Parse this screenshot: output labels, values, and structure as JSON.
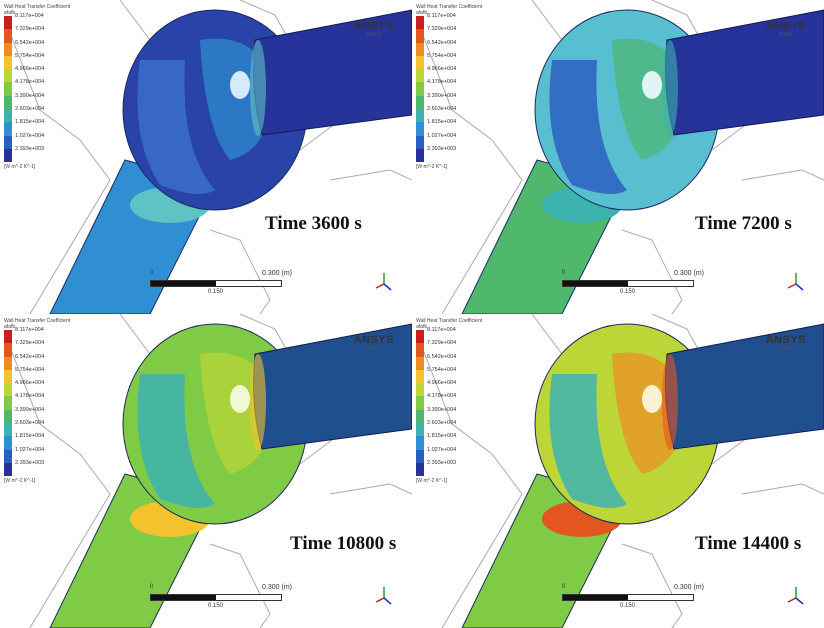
{
  "legend": {
    "title": "Wall Heat Transfer Coefficient\nafafb",
    "values": [
      "8.117e+004",
      "7.329e+004",
      "6.542e+004",
      "5.754e+004",
      "4.966e+004",
      "4.178e+004",
      "3.390e+004",
      "2.603e+004",
      "1.815e+004",
      "1.027e+004",
      "2.393e+003"
    ],
    "colors": [
      "#c8211d",
      "#e4561f",
      "#f08a23",
      "#f2c32c",
      "#bcd537",
      "#7fcb45",
      "#4fb86c",
      "#3db3b0",
      "#2f8fd2",
      "#2a5fc2",
      "#27329a"
    ],
    "unit": "[W m^-2 K^-1]"
  },
  "logo": {
    "brand": "ANSYS",
    "version": "R14.0"
  },
  "scalebar": {
    "zero": "0",
    "max": "0.300",
    "unit": "(m)",
    "mid": "0.150"
  },
  "panels": [
    {
      "time": "Time 3600 s",
      "colors": {
        "sphere": "#2a43a8",
        "patch1": "#2f8fd2",
        "patch2": "#3b6fcc",
        "pipe_right": "#26339a",
        "pipe_bottom": "#2f8fd2",
        "band": "#5fc3c6",
        "highlight": "#e8f6ff"
      }
    },
    {
      "time": "Time 7200 s",
      "colors": {
        "sphere": "#57bfd0",
        "patch1": "#4cb56f",
        "patch2": "#2a5fc2",
        "pipe_right": "#26339a",
        "pipe_bottom": "#4fb86c",
        "band": "#3db3b0",
        "highlight": "#f2fbff"
      }
    },
    {
      "time": "Time 10800 s",
      "colors": {
        "sphere": "#7fcb45",
        "patch1": "#bcd537",
        "patch2": "#3db3b0",
        "pipe_right": "#1f4f8f",
        "pipe_bottom": "#7fcb45",
        "band": "#f2c32c",
        "highlight": "#f7fce8"
      }
    },
    {
      "time": "Time 14400 s",
      "colors": {
        "sphere": "#bcd537",
        "patch1": "#f08a23",
        "patch2": "#3db3b0",
        "pipe_right": "#1f4f8f",
        "pipe_bottom": "#7fcb45",
        "band": "#e4561f",
        "highlight": "#fffbe6"
      }
    }
  ]
}
